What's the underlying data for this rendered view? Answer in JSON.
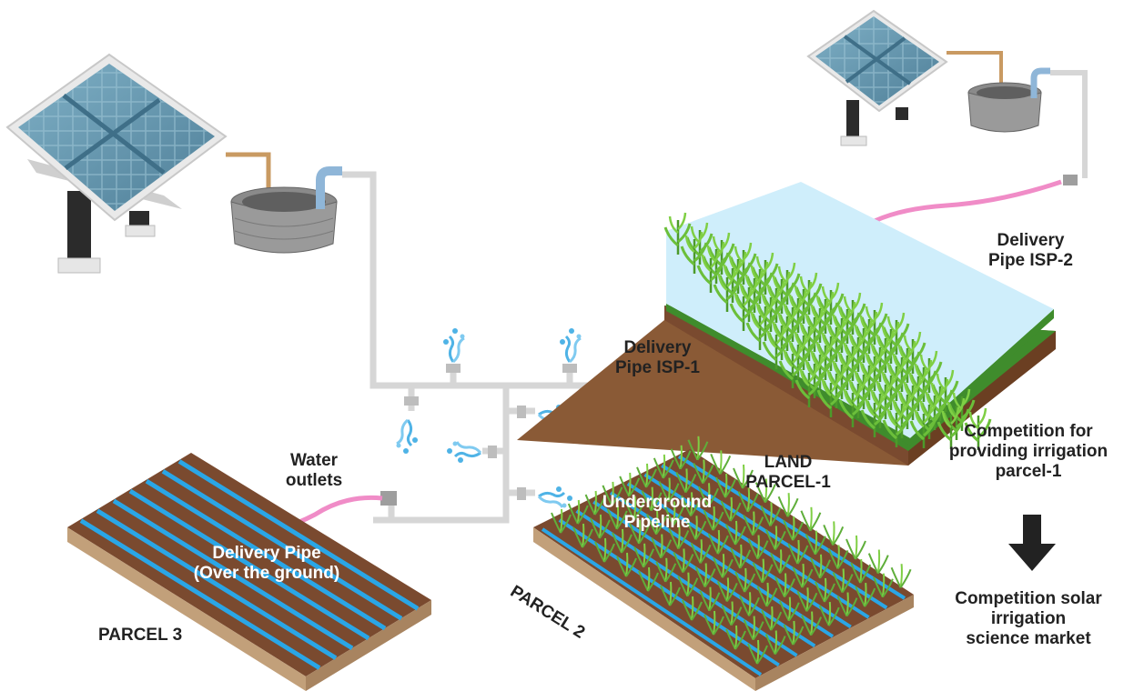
{
  "labels": {
    "delivery_isp2": [
      "Delivery",
      "Pipe ISP-2"
    ],
    "delivery_isp1": [
      "Delivery",
      "Pipe ISP-1"
    ],
    "competition_parcel1": [
      "Competition for",
      "providing irrigation",
      "parcel-1"
    ],
    "land_parcel1": [
      "LAND",
      "PARCEL-1"
    ],
    "water_outlets": [
      "Water",
      "outlets"
    ],
    "underground_pipeline": [
      "Underground",
      "Pipeline"
    ],
    "delivery_over_ground": [
      "Delivery Pipe",
      "(Over the ground)"
    ],
    "parcel2": "PARCEL 2",
    "parcel3": "PARCEL 3",
    "competition_market": [
      "Competition solar",
      "irrigation",
      "science market"
    ]
  },
  "colors": {
    "solar_panel": "#5f8fa6",
    "pipe": "#d9d9d9",
    "delivery_hose": "#f08cc7",
    "water": "#4fb3e6",
    "soil": "#7a4a2f",
    "grass": "#3f8c2c",
    "crop": "#6bbf3a",
    "arrow": "#222222"
  }
}
